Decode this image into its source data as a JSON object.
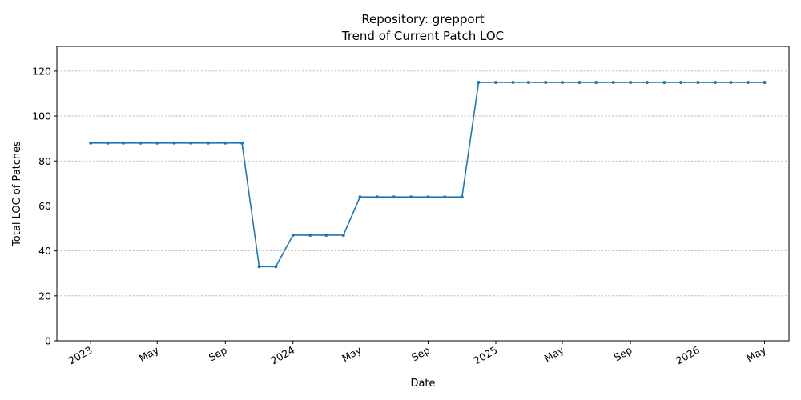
{
  "chart_data": {
    "type": "line",
    "title_line1": "Repository: grepport",
    "title_line2": "Trend of Current Patch LOC",
    "xlabel": "Date",
    "ylabel": "Total LOC of Patches",
    "ylim": [
      0,
      131
    ],
    "yticks": [
      0,
      20,
      40,
      60,
      80,
      100,
      120
    ],
    "xlim": [
      "2022-11-01",
      "2026-06-14"
    ],
    "xticks": [
      {
        "date": "2023-01-01",
        "label": "2023"
      },
      {
        "date": "2023-05-01",
        "label": "May"
      },
      {
        "date": "2023-09-01",
        "label": "Sep"
      },
      {
        "date": "2024-01-01",
        "label": "2024"
      },
      {
        "date": "2024-05-01",
        "label": "May"
      },
      {
        "date": "2024-09-01",
        "label": "Sep"
      },
      {
        "date": "2025-01-01",
        "label": "2025"
      },
      {
        "date": "2025-05-01",
        "label": "May"
      },
      {
        "date": "2025-09-01",
        "label": "Sep"
      },
      {
        "date": "2026-01-01",
        "label": "2026"
      },
      {
        "date": "2026-05-01",
        "label": "May"
      }
    ],
    "grid": "y-dashed",
    "color": "#1f77b4",
    "series": [
      {
        "x": [
          "2023-01-01",
          "2023-02-01",
          "2023-03-01",
          "2023-04-01",
          "2023-05-01",
          "2023-06-01",
          "2023-07-01",
          "2023-08-01",
          "2023-09-01",
          "2023-10-01",
          "2023-11-01",
          "2023-12-01",
          "2024-01-01",
          "2024-02-01",
          "2024-03-01",
          "2024-04-01",
          "2024-05-01",
          "2024-06-01",
          "2024-07-01",
          "2024-08-01",
          "2024-09-01",
          "2024-10-01",
          "2024-11-01",
          "2024-12-01",
          "2025-01-01",
          "2025-02-01",
          "2025-03-01",
          "2025-04-01",
          "2025-05-01",
          "2025-06-01",
          "2025-07-01",
          "2025-08-01",
          "2025-09-01",
          "2025-10-01",
          "2025-11-01",
          "2025-12-01",
          "2026-01-01",
          "2026-02-01",
          "2026-03-01",
          "2026-04-01",
          "2026-05-01"
        ],
        "values": [
          88,
          88,
          88,
          88,
          88,
          88,
          88,
          88,
          88,
          88,
          33,
          33,
          47,
          47,
          47,
          47,
          64,
          64,
          64,
          64,
          64,
          64,
          64,
          115,
          115,
          115,
          115,
          115,
          115,
          115,
          115,
          115,
          115,
          115,
          115,
          115,
          115,
          115,
          115,
          115,
          115
        ]
      }
    ]
  }
}
